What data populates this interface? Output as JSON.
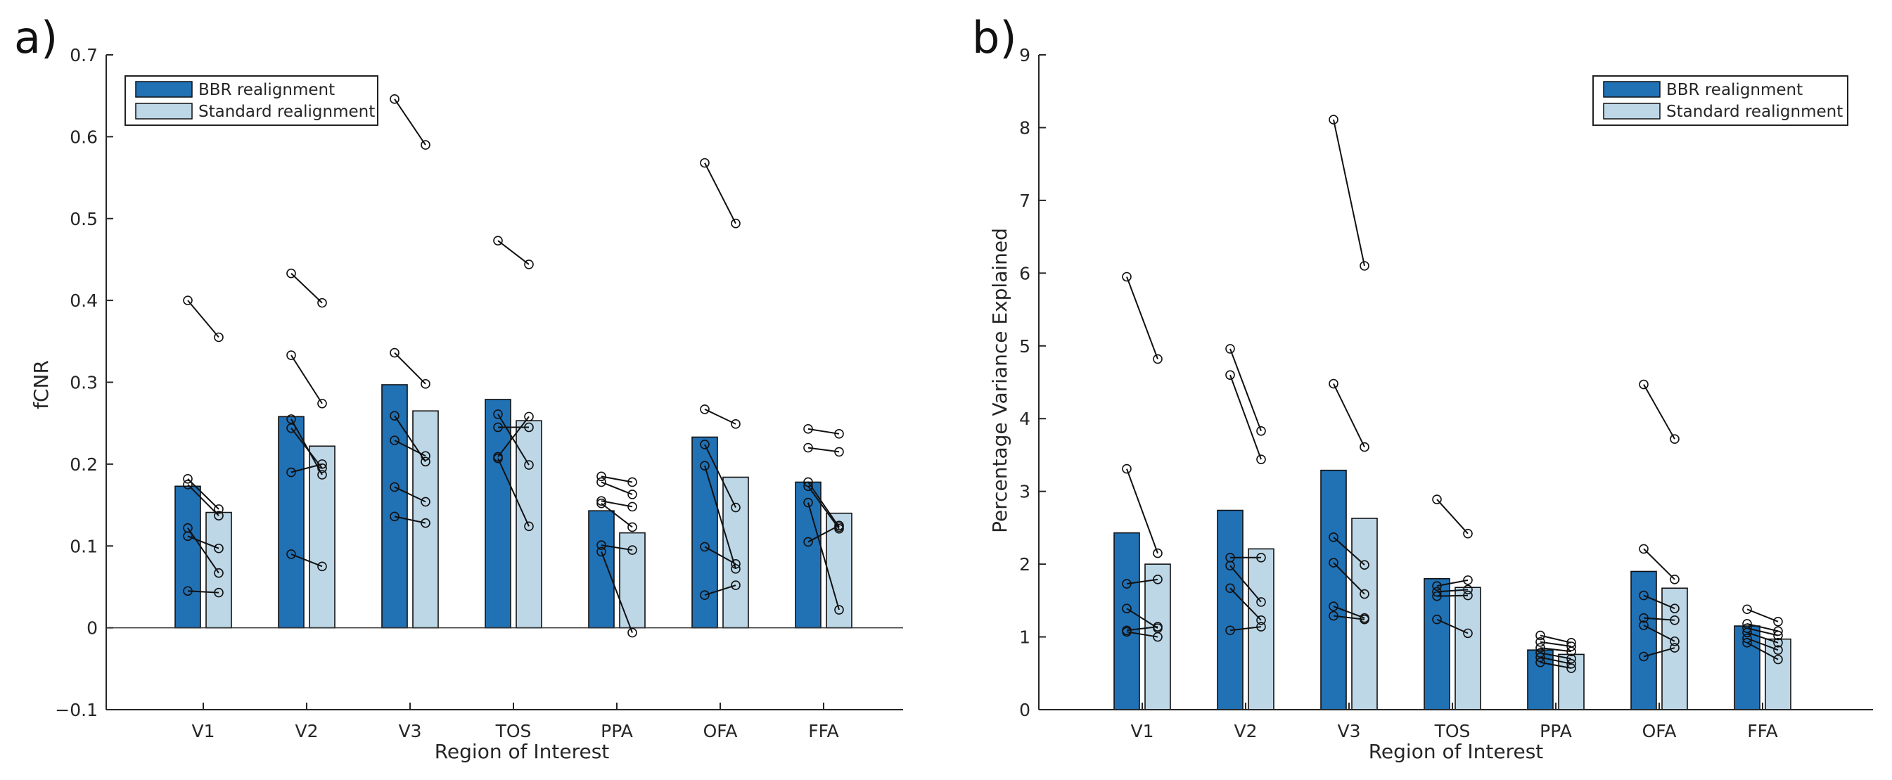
{
  "chart_data": [
    {
      "type": "bar",
      "panel_label": "a)",
      "title": "",
      "xlabel": "Region of Interest",
      "ylabel": "fCNR",
      "ylim": [
        -0.1,
        0.7
      ],
      "yticks": [
        -0.1,
        0,
        0.1,
        0.2,
        0.3,
        0.4,
        0.5,
        0.6,
        0.7
      ],
      "ytick_labels": [
        "−0.1",
        "0",
        "0.1",
        "0.2",
        "0.3",
        "0.4",
        "0.5",
        "0.6",
        "0.7"
      ],
      "categories": [
        "V1",
        "V2",
        "V3",
        "TOS",
        "PPA",
        "OFA",
        "FFA"
      ],
      "legend_position": "top-left",
      "series": [
        {
          "name": "BBR realignment",
          "color": "#2171b5",
          "values": [
            0.173,
            0.258,
            0.297,
            0.279,
            0.143,
            0.233,
            0.178
          ]
        },
        {
          "name": "Standard realignment",
          "color": "#bdd7e7",
          "values": [
            0.141,
            0.222,
            0.265,
            0.253,
            0.116,
            0.184,
            0.14
          ]
        }
      ],
      "subjects": [
        [
          [
            0.4,
            0.355
          ],
          [
            0.182,
            0.145
          ],
          [
            0.175,
            0.137
          ],
          [
            0.122,
            0.067
          ],
          [
            0.112,
            0.097
          ],
          [
            0.045,
            0.043
          ]
        ],
        [
          [
            0.433,
            0.397
          ],
          [
            0.333,
            0.274
          ],
          [
            0.255,
            0.187
          ],
          [
            0.244,
            0.195
          ],
          [
            0.19,
            0.2
          ],
          [
            0.09,
            0.075
          ]
        ],
        [
          [
            0.646,
            0.59
          ],
          [
            0.336,
            0.298
          ],
          [
            0.259,
            0.203
          ],
          [
            0.229,
            0.21
          ],
          [
            0.172,
            0.154
          ],
          [
            0.136,
            0.128
          ]
        ],
        [
          [
            0.473,
            0.444
          ],
          [
            0.261,
            0.199
          ],
          [
            0.245,
            0.245
          ],
          [
            0.209,
            0.258
          ],
          [
            0.207,
            0.124
          ]
        ],
        [
          [
            0.185,
            0.178
          ],
          [
            0.178,
            0.163
          ],
          [
            0.155,
            0.148
          ],
          [
            0.152,
            0.123
          ],
          [
            0.101,
            0.095
          ],
          [
            0.093,
            -0.006
          ]
        ],
        [
          [
            0.568,
            0.494
          ],
          [
            0.267,
            0.249
          ],
          [
            0.224,
            0.147
          ],
          [
            0.198,
            0.072
          ],
          [
            0.099,
            0.078
          ],
          [
            0.04,
            0.052
          ]
        ],
        [
          [
            0.243,
            0.237
          ],
          [
            0.22,
            0.215
          ],
          [
            0.178,
            0.123
          ],
          [
            0.173,
            0.121
          ],
          [
            0.153,
            0.022
          ],
          [
            0.105,
            0.125
          ]
        ]
      ]
    },
    {
      "type": "bar",
      "panel_label": "b)",
      "title": "",
      "xlabel": "Region of Interest",
      "ylabel": "Percentage Variance Explained",
      "ylim": [
        0,
        9
      ],
      "yticks": [
        0,
        1,
        2,
        3,
        4,
        5,
        6,
        7,
        8,
        9
      ],
      "ytick_labels": [
        "0",
        "1",
        "2",
        "3",
        "4",
        "5",
        "6",
        "7",
        "8",
        "9"
      ],
      "categories": [
        "V1",
        "V2",
        "V3",
        "TOS",
        "PPA",
        "OFA",
        "FFA"
      ],
      "legend_position": "top-right",
      "series": [
        {
          "name": "BBR realignment",
          "color": "#2171b5",
          "values": [
            2.43,
            2.74,
            3.29,
            1.8,
            0.82,
            1.9,
            1.15
          ]
        },
        {
          "name": "Standard realignment",
          "color": "#bdd7e7",
          "values": [
            2.0,
            2.21,
            2.63,
            1.68,
            0.76,
            1.67,
            0.97
          ]
        }
      ],
      "subjects": [
        [
          [
            5.95,
            4.82
          ],
          [
            3.31,
            2.15
          ],
          [
            1.73,
            1.79
          ],
          [
            1.39,
            1.12
          ],
          [
            1.09,
            1.14
          ],
          [
            1.07,
            1.0
          ]
        ],
        [
          [
            4.96,
            3.83
          ],
          [
            4.6,
            3.44
          ],
          [
            2.09,
            2.09
          ],
          [
            1.98,
            1.48
          ],
          [
            1.67,
            1.23
          ],
          [
            1.09,
            1.14
          ]
        ],
        [
          [
            8.11,
            6.1
          ],
          [
            4.48,
            3.61
          ],
          [
            2.37,
            1.99
          ],
          [
            2.02,
            1.59
          ],
          [
            1.42,
            1.26
          ],
          [
            1.29,
            1.24
          ]
        ],
        [
          [
            2.89,
            2.42
          ],
          [
            1.7,
            1.78
          ],
          [
            1.62,
            1.65
          ],
          [
            1.56,
            1.57
          ],
          [
            1.24,
            1.05
          ]
        ],
        [
          [
            1.02,
            0.92
          ],
          [
            0.93,
            0.87
          ],
          [
            0.85,
            0.8
          ],
          [
            0.78,
            0.7
          ],
          [
            0.72,
            0.63
          ],
          [
            0.65,
            0.57
          ]
        ],
        [
          [
            4.47,
            3.72
          ],
          [
            2.21,
            1.79
          ],
          [
            1.57,
            1.39
          ],
          [
            1.26,
            1.23
          ],
          [
            1.16,
            0.94
          ],
          [
            0.73,
            0.85
          ]
        ],
        [
          [
            1.38,
            1.21
          ],
          [
            1.18,
            1.08
          ],
          [
            1.12,
            1.02
          ],
          [
            1.06,
            0.92
          ],
          [
            0.98,
            0.82
          ],
          [
            0.92,
            0.69
          ]
        ]
      ]
    }
  ]
}
